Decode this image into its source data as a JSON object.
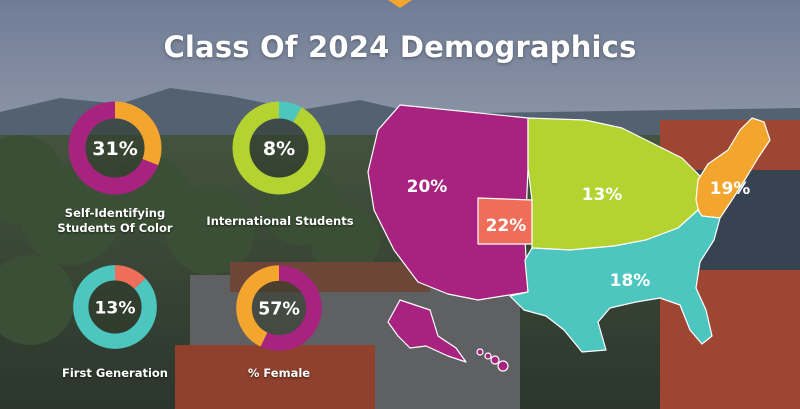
{
  "page": {
    "title": "Class Of 2024 Demographics"
  },
  "colors": {
    "magenta": "#A7237F",
    "orange": "#F3A52E",
    "lime": "#B4D230",
    "teal": "#4CC6BE",
    "coral": "#EE6E5A",
    "sky": "#8896AC",
    "mountain": "#5C6B78",
    "foliage": "#3E5530",
    "building": "#B84A2C",
    "frame": "#F3A52E"
  },
  "chart_data": [
    {
      "type": "pie",
      "id": "students-of-color",
      "label": "31%",
      "caption_lines": [
        "Self-Identifying",
        "Students Of Color"
      ],
      "values": [
        31,
        69
      ],
      "colors": [
        "#F3A52E",
        "#A7237F"
      ]
    },
    {
      "type": "pie",
      "id": "international",
      "label": "8%",
      "caption_lines": [
        "International Students"
      ],
      "values": [
        8,
        92
      ],
      "colors": [
        "#4CC6BE",
        "#B4D230"
      ]
    },
    {
      "type": "pie",
      "id": "first-generation",
      "label": "13%",
      "caption_lines": [
        "First Generation"
      ],
      "values": [
        13,
        87
      ],
      "colors": [
        "#EE6E5A",
        "#4CC6BE"
      ]
    },
    {
      "type": "pie",
      "id": "female",
      "label": "57%",
      "caption_lines": [
        "% Female"
      ],
      "values": [
        57,
        43
      ],
      "colors": [
        "#A7237F",
        "#F3A52E"
      ]
    }
  ],
  "map": {
    "regions": [
      {
        "name": "West",
        "label": "20%",
        "color": "#A7237F"
      },
      {
        "name": "Colorado",
        "label": "22%",
        "color": "#EE6E5A"
      },
      {
        "name": "Midwest",
        "label": "13%",
        "color": "#B4D230"
      },
      {
        "name": "Northeast",
        "label": "19%",
        "color": "#F3A52E"
      },
      {
        "name": "South",
        "label": "18%",
        "color": "#4CC6BE"
      }
    ]
  }
}
